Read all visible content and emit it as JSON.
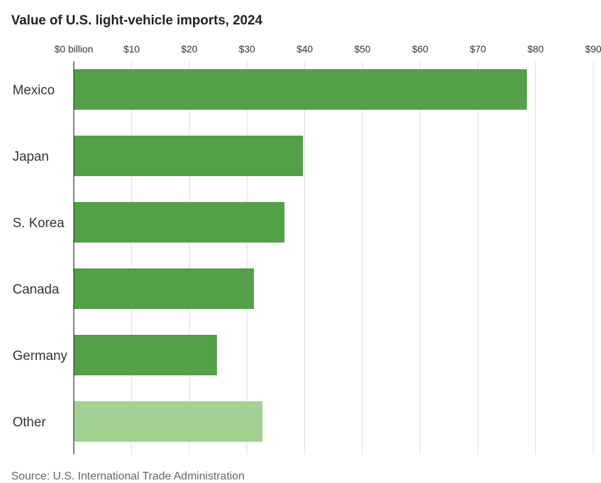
{
  "title": "Value of U.S. light-vehicle imports, 2024",
  "source": "Source: U.S. International Trade Administration",
  "colors": {
    "primary_bar": "#53a049",
    "highlight_bar": "#a2d291",
    "gridline": "#dedede",
    "axis": "#333333"
  },
  "chart_data": {
    "type": "bar",
    "orientation": "horizontal",
    "title": "Value of U.S. light-vehicle imports, 2024",
    "categories": [
      "Mexico",
      "Japan",
      "S. Korea",
      "Canada",
      "Germany",
      "Other"
    ],
    "values": [
      78.5,
      39.7,
      36.5,
      31.2,
      24.8,
      32.7
    ],
    "xlim": [
      0,
      90
    ],
    "tick_values": [
      0,
      10,
      20,
      30,
      40,
      50,
      60,
      70,
      80,
      90
    ],
    "tick_labels": [
      "$0 billion",
      "$10",
      "$20",
      "$30",
      "$40",
      "$50",
      "$60",
      "$70",
      "$80",
      "$90"
    ],
    "grid": true,
    "axis_position": "top",
    "xlabel": "",
    "ylabel": ""
  }
}
